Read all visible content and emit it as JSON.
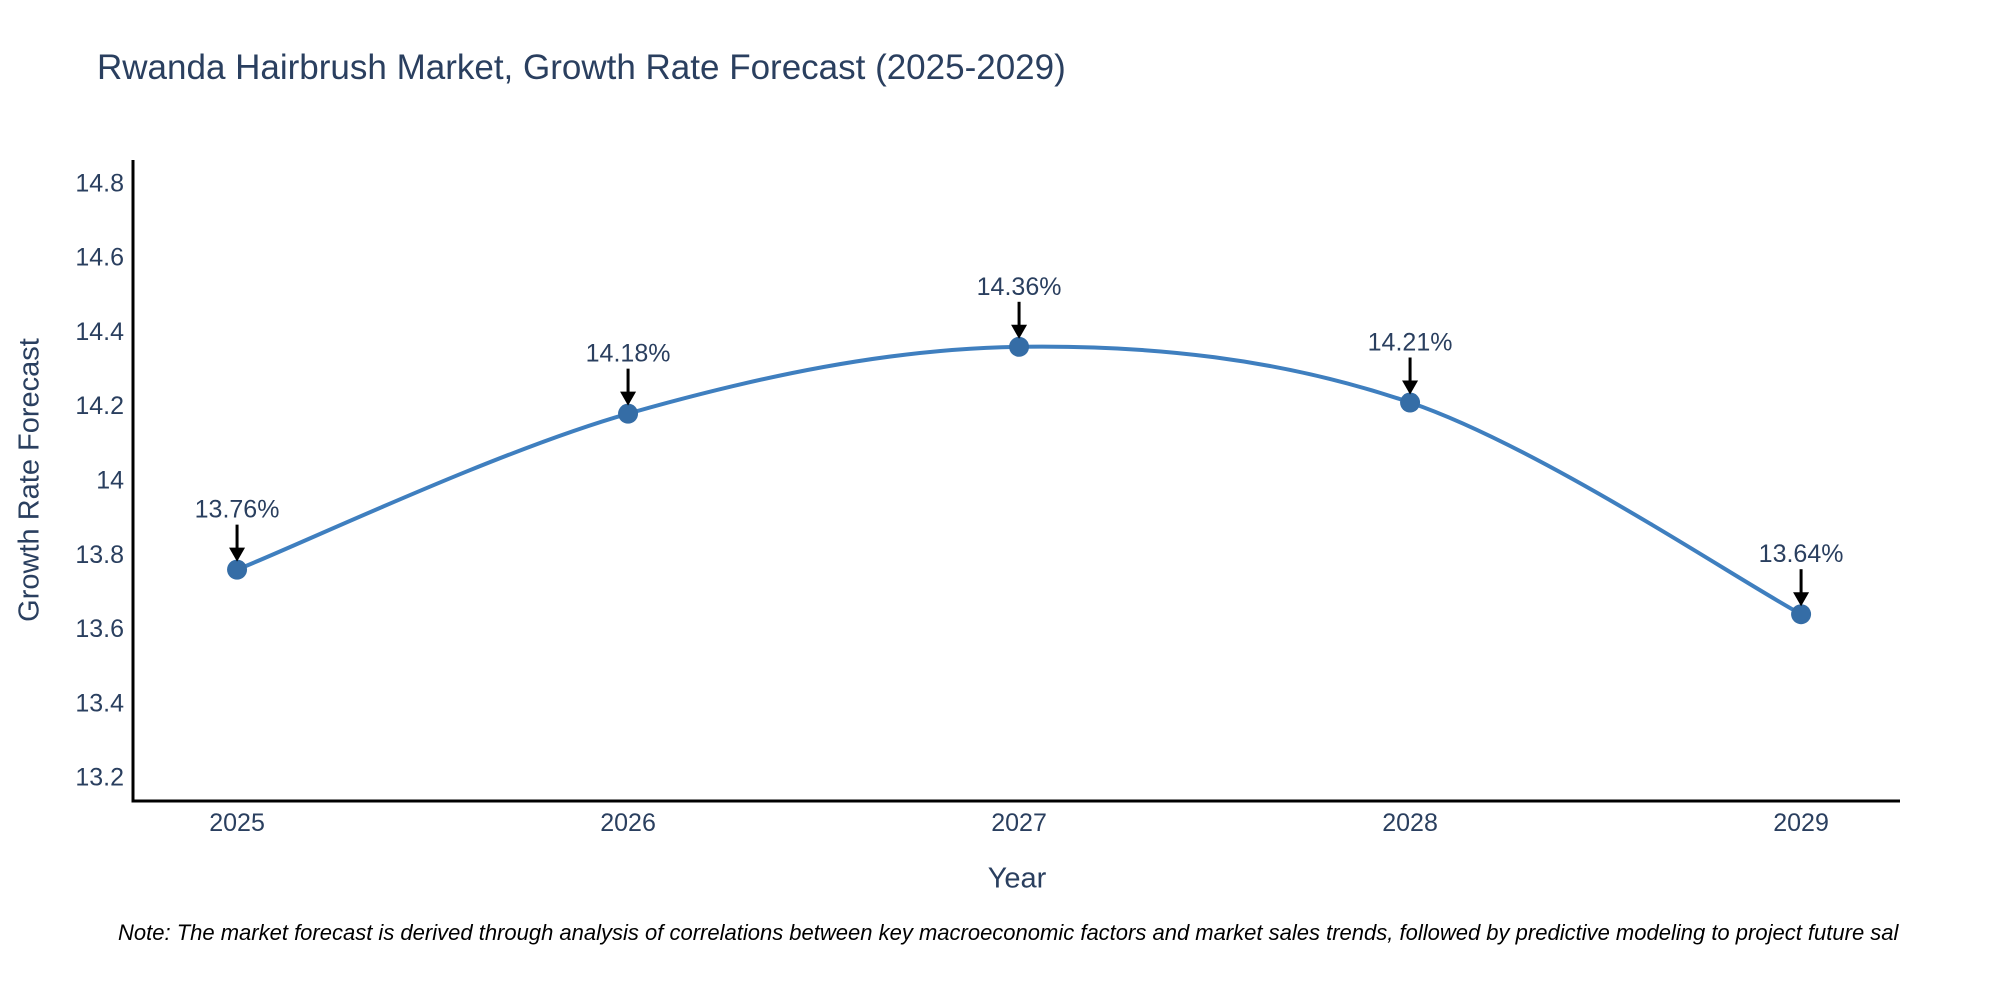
{
  "header": {
    "title": "Rwanda Hairbrush Market, Growth Rate Forecast (2025-2029)"
  },
  "chart_data": {
    "type": "line",
    "title": "Rwanda Hairbrush Market, Growth Rate Forecast (2025-2029)",
    "xlabel": "Year",
    "ylabel": "Growth Rate Forecast",
    "categories": [
      2025,
      2026,
      2027,
      2028,
      2029
    ],
    "values": [
      13.76,
      14.18,
      14.36,
      14.21,
      13.64
    ],
    "point_labels": [
      "13.76%",
      "14.18%",
      "14.36%",
      "14.21%",
      "13.64%"
    ],
    "x_tick_labels": [
      "2025",
      "2026",
      "2027",
      "2028",
      "2029"
    ],
    "y_ticks": [
      13.2,
      13.4,
      13.6,
      13.8,
      14,
      14.2,
      14.4,
      14.6,
      14.8
    ],
    "y_tick_labels": [
      "13.2",
      "13.4",
      "13.6",
      "13.8",
      "14",
      "14.2",
      "14.4",
      "14.6",
      "14.8"
    ],
    "x_range": [
      2024.739,
      2029.253
    ],
    "y_range": [
      13.137,
      14.863
    ],
    "line_shape": "spline",
    "grid": false,
    "legend_position": "none",
    "colors": {
      "line": "#3f7fbf",
      "marker": "#356da6",
      "axis": "#000000",
      "tick_text": "#2a3f5f",
      "annotation_text": "#2a3f5f",
      "arrow": "#000000"
    }
  },
  "note": {
    "text": "Note: The market forecast is derived through analysis of correlations between key macroeconomic factors and market sales trends, followed by predictive modeling to project future sal"
  }
}
